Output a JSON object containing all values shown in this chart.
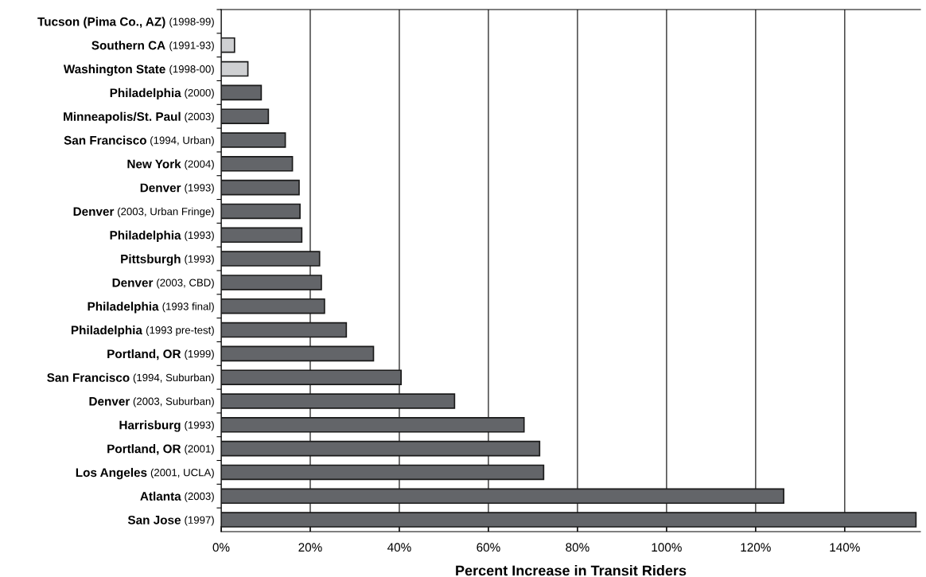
{
  "chart_data": {
    "type": "bar",
    "orientation": "horizontal",
    "xlabel": "Percent Increase in Transit Riders",
    "categories": [
      "Tucson (Pima Co., AZ) (1998-99)",
      "Southern CA (1991-93)",
      "Washington State (1998-00)",
      "Philadelphia (2000)",
      "Minneapolis/St. Paul (2003)",
      "San Francisco (1994, Urban)",
      "New York (2004)",
      "Denver (1993)",
      "Denver (2003, Urban Fringe)",
      "Philadelphia (1993)",
      "Pittsburgh (1993)",
      "Denver (2003, CBD)",
      "Philadelphia (1993 final)",
      "Philadelphia (1993 pre-test)",
      "Portland, OR (1999)",
      "San Francisco (1994, Suburban)",
      "Denver (2003, Suburban)",
      "Harrisburg (1993)",
      "Portland, OR (2001)",
      "Los Angeles (2001, UCLA)",
      "Atlanta (2003)",
      "San Jose (1997)"
    ],
    "values": [
      null,
      3.0,
      6.0,
      9.0,
      10.6,
      14.4,
      16.0,
      17.5,
      17.7,
      18.1,
      22.1,
      22.5,
      23.2,
      28.1,
      34.2,
      40.4,
      52.4,
      68.0,
      71.5,
      72.4,
      126.3,
      156.0
    ],
    "colors": [
      "#636569",
      "#cfd0d2",
      "#cfd0d2",
      "#636569",
      "#636569",
      "#636569",
      "#636569",
      "#636569",
      "#636569",
      "#636569",
      "#636569",
      "#636569",
      "#636569",
      "#636569",
      "#636569",
      "#636569",
      "#636569",
      "#636569",
      "#636569",
      "#636569",
      "#636569",
      "#636569"
    ],
    "xlim": [
      0,
      157
    ],
    "xticks": [
      {
        "value": 0,
        "label": "0%"
      },
      {
        "value": 20,
        "label": "20%"
      },
      {
        "value": 40,
        "label": "40%"
      },
      {
        "value": 60,
        "label": "60%"
      },
      {
        "value": 80,
        "label": "80%"
      },
      {
        "value": 100,
        "label": "100%"
      },
      {
        "value": 120,
        "label": "120%"
      },
      {
        "value": 140,
        "label": "140%"
      }
    ],
    "grid": "x"
  }
}
